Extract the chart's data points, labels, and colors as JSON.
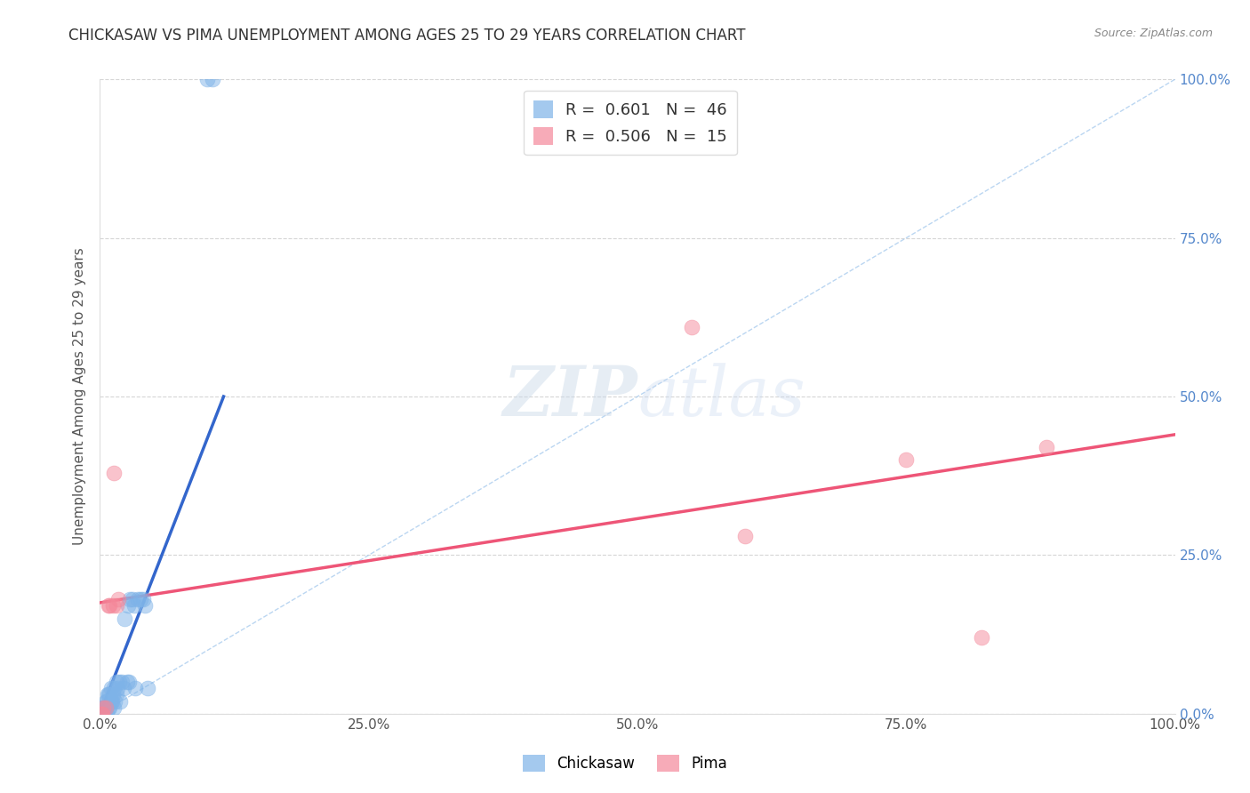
{
  "title": "CHICKASAW VS PIMA UNEMPLOYMENT AMONG AGES 25 TO 29 YEARS CORRELATION CHART",
  "source": "Source: ZipAtlas.com",
  "ylabel": "Unemployment Among Ages 25 to 29 years",
  "xlim": [
    0,
    1.0
  ],
  "ylim": [
    0,
    1.0
  ],
  "xticks": [
    0.0,
    0.25,
    0.5,
    0.75,
    1.0
  ],
  "yticks": [
    0.0,
    0.25,
    0.5,
    0.75,
    1.0
  ],
  "xtick_labels": [
    "0.0%",
    "25.0%",
    "50.0%",
    "75.0%",
    "100.0%"
  ],
  "ytick_labels": [
    "0.0%",
    "25.0%",
    "50.0%",
    "75.0%",
    "100.0%"
  ],
  "chickasaw_color": "#7EB3E8",
  "pima_color": "#F4889A",
  "chickasaw_R": 0.601,
  "chickasaw_N": 46,
  "pima_R": 0.506,
  "pima_N": 15,
  "background_color": "#ffffff",
  "grid_color": "#cccccc",
  "chickasaw_x": [
    0.001,
    0.001,
    0.002,
    0.002,
    0.003,
    0.003,
    0.004,
    0.004,
    0.005,
    0.005,
    0.006,
    0.006,
    0.007,
    0.008,
    0.008,
    0.009,
    0.009,
    0.01,
    0.01,
    0.011,
    0.012,
    0.013,
    0.013,
    0.014,
    0.015,
    0.015,
    0.016,
    0.018,
    0.019,
    0.02,
    0.022,
    0.023,
    0.025,
    0.026,
    0.027,
    0.028,
    0.03,
    0.032,
    0.033,
    0.035,
    0.038,
    0.04,
    0.042,
    0.044,
    0.1,
    0.105
  ],
  "chickasaw_y": [
    0.0,
    0.01,
    0.0,
    0.01,
    0.0,
    0.01,
    0.0,
    0.01,
    0.01,
    0.02,
    0.0,
    0.02,
    0.03,
    0.01,
    0.03,
    0.01,
    0.03,
    0.02,
    0.04,
    0.02,
    0.03,
    0.01,
    0.04,
    0.02,
    0.03,
    0.05,
    0.04,
    0.05,
    0.02,
    0.05,
    0.04,
    0.15,
    0.05,
    0.17,
    0.05,
    0.18,
    0.18,
    0.17,
    0.04,
    0.18,
    0.18,
    0.18,
    0.17,
    0.04,
    1.0,
    1.0
  ],
  "pima_x": [
    0.001,
    0.002,
    0.003,
    0.005,
    0.008,
    0.009,
    0.012,
    0.013,
    0.015,
    0.017,
    0.55,
    0.6,
    0.75,
    0.82,
    0.88
  ],
  "pima_y": [
    0.0,
    0.0,
    0.01,
    0.01,
    0.17,
    0.17,
    0.17,
    0.38,
    0.17,
    0.18,
    0.61,
    0.28,
    0.4,
    0.12,
    0.42
  ],
  "chickasaw_line_x": [
    0.0,
    0.115
  ],
  "chickasaw_line_y": [
    0.0,
    0.5
  ],
  "pima_line_x": [
    0.0,
    1.0
  ],
  "pima_line_y": [
    0.175,
    0.44
  ],
  "diag_line_x": [
    0.0,
    1.0
  ],
  "diag_line_y": [
    0.0,
    1.0
  ]
}
